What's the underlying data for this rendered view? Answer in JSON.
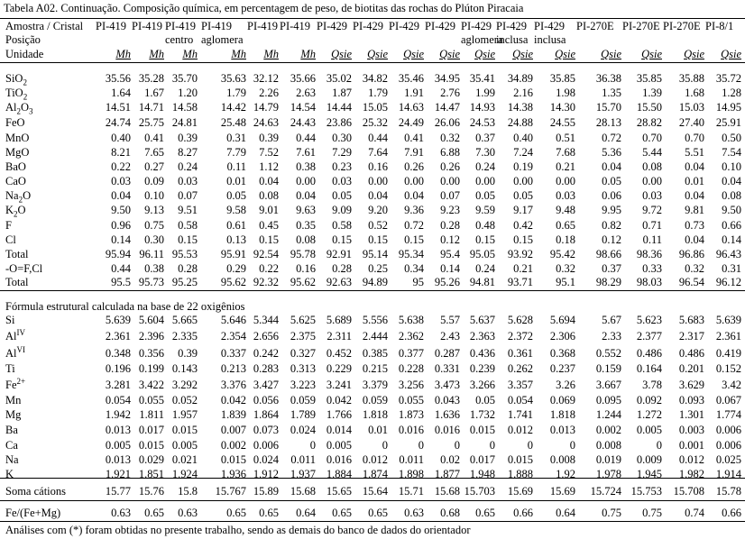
{
  "title": "Tabela A02. Continuação. Composição química, em percentagem de peso, de biotitas das rochas do Plúton Piracaia",
  "header": {
    "row_label_1": "Amostra / Cristal",
    "row_label_2": "Posição",
    "row_label_3": "Unidade",
    "samples": [
      "PI-419",
      "PI-419",
      "PI-419",
      "PI-419",
      "PI-419",
      "PI-419",
      "PI-429",
      "PI-429",
      "PI-429",
      "PI-429",
      "PI-429",
      "PI-429",
      "PI-429",
      "PI-270E",
      "PI-270E",
      "PI-270E",
      "PI-8/1"
    ],
    "positions": [
      "",
      "",
      "centro",
      "aglomera",
      "",
      "",
      "",
      "",
      "",
      "",
      "aglomera",
      "inclusa",
      "inclusa",
      "",
      "",
      "",
      ""
    ],
    "units": [
      "Mh",
      "Mh",
      "Mh",
      "Mh",
      "Mh",
      "Mh",
      "Qsie",
      "Qsie",
      "Qsie",
      "Qsie",
      "Qsie",
      "Qsie",
      "Qsie",
      "Qsie",
      "Qsie",
      "Qsie",
      "Qsie"
    ]
  },
  "oxides": [
    {
      "base": "SiO",
      "sub": "2",
      "sup": "",
      "values": [
        "35.56",
        "35.28",
        "35.70",
        "35.63",
        "32.12",
        "35.66",
        "35.02",
        "34.82",
        "35.46",
        "34.95",
        "35.41",
        "34.89",
        "35.85",
        "36.38",
        "35.85",
        "35.88",
        "35.72"
      ]
    },
    {
      "base": "TiO",
      "sub": "2",
      "sup": "",
      "values": [
        "1.64",
        "1.67",
        "1.20",
        "1.79",
        "2.26",
        "2.63",
        "1.87",
        "1.79",
        "1.91",
        "2.76",
        "1.99",
        "2.16",
        "1.98",
        "1.35",
        "1.39",
        "1.68",
        "1.28"
      ]
    },
    {
      "base": "Al",
      "sub": "2",
      "sup": "",
      "tail": "O",
      "tailsub": "3",
      "values": [
        "14.51",
        "14.71",
        "14.58",
        "14.42",
        "14.79",
        "14.54",
        "14.44",
        "15.05",
        "14.63",
        "14.47",
        "14.93",
        "14.38",
        "14.30",
        "15.70",
        "15.50",
        "15.03",
        "14.95"
      ]
    },
    {
      "base": "FeO",
      "sub": "",
      "sup": "",
      "values": [
        "24.74",
        "25.75",
        "24.81",
        "25.48",
        "24.63",
        "24.43",
        "23.86",
        "25.32",
        "24.49",
        "26.06",
        "24.53",
        "24.88",
        "24.55",
        "28.13",
        "28.82",
        "27.40",
        "25.91"
      ]
    },
    {
      "base": "MnO",
      "sub": "",
      "sup": "",
      "values": [
        "0.40",
        "0.41",
        "0.39",
        "0.31",
        "0.39",
        "0.44",
        "0.30",
        "0.44",
        "0.41",
        "0.32",
        "0.37",
        "0.40",
        "0.51",
        "0.72",
        "0.70",
        "0.70",
        "0.50"
      ]
    },
    {
      "base": "MgO",
      "sub": "",
      "sup": "",
      "values": [
        "8.21",
        "7.65",
        "8.27",
        "7.79",
        "7.52",
        "7.61",
        "7.29",
        "7.64",
        "7.91",
        "6.88",
        "7.30",
        "7.24",
        "7.68",
        "5.36",
        "5.44",
        "5.51",
        "7.54"
      ]
    },
    {
      "base": "BaO",
      "sub": "",
      "sup": "",
      "values": [
        "0.22",
        "0.27",
        "0.24",
        "0.11",
        "1.12",
        "0.38",
        "0.23",
        "0.16",
        "0.26",
        "0.26",
        "0.24",
        "0.19",
        "0.21",
        "0.04",
        "0.08",
        "0.04",
        "0.10"
      ]
    },
    {
      "base": "CaO",
      "sub": "",
      "sup": "",
      "values": [
        "0.03",
        "0.09",
        "0.03",
        "0.01",
        "0.04",
        "0.00",
        "0.03",
        "0.00",
        "0.00",
        "0.00",
        "0.00",
        "0.00",
        "0.00",
        "0.05",
        "0.00",
        "0.01",
        "0.04"
      ]
    },
    {
      "base": "Na",
      "sub": "2",
      "sup": "",
      "tail": "O",
      "tailsub": "",
      "values": [
        "0.04",
        "0.10",
        "0.07",
        "0.05",
        "0.08",
        "0.04",
        "0.05",
        "0.04",
        "0.04",
        "0.07",
        "0.05",
        "0.05",
        "0.03",
        "0.06",
        "0.03",
        "0.04",
        "0.08"
      ]
    },
    {
      "base": "K",
      "sub": "2",
      "sup": "",
      "tail": "O",
      "tailsub": "",
      "values": [
        "9.50",
        "9.13",
        "9.51",
        "9.58",
        "9.01",
        "9.63",
        "9.09",
        "9.20",
        "9.36",
        "9.23",
        "9.59",
        "9.17",
        "9.48",
        "9.95",
        "9.72",
        "9.81",
        "9.50"
      ]
    },
    {
      "base": "F",
      "sub": "",
      "sup": "",
      "values": [
        "0.96",
        "0.75",
        "0.58",
        "0.61",
        "0.45",
        "0.35",
        "0.58",
        "0.52",
        "0.72",
        "0.28",
        "0.48",
        "0.42",
        "0.65",
        "0.82",
        "0.71",
        "0.73",
        "0.66"
      ]
    },
    {
      "base": "Cl",
      "sub": "",
      "sup": "",
      "values": [
        "0.14",
        "0.30",
        "0.15",
        "0.13",
        "0.15",
        "0.08",
        "0.15",
        "0.15",
        "0.15",
        "0.12",
        "0.15",
        "0.15",
        "0.18",
        "0.12",
        "0.11",
        "0.04",
        "0.14"
      ]
    },
    {
      "base": "Total",
      "sub": "",
      "sup": "",
      "values": [
        "95.94",
        "96.11",
        "95.53",
        "95.91",
        "92.54",
        "95.78",
        "92.91",
        "95.14",
        "95.34",
        "95.4",
        "95.05",
        "93.92",
        "95.42",
        "98.66",
        "98.36",
        "96.86",
        "96.43"
      ]
    },
    {
      "base": "-O=F,Cl",
      "sub": "",
      "sup": "",
      "values": [
        "0.44",
        "0.38",
        "0.28",
        "0.29",
        "0.22",
        "0.16",
        "0.28",
        "0.25",
        "0.34",
        "0.14",
        "0.24",
        "0.21",
        "0.32",
        "0.37",
        "0.33",
        "0.32",
        "0.31"
      ]
    },
    {
      "base": "Total",
      "sub": "",
      "sup": "",
      "values": [
        "95.5",
        "95.73",
        "95.25",
        "95.62",
        "92.32",
        "95.62",
        "92.63",
        "94.89",
        "95",
        "95.26",
        "94.81",
        "93.71",
        "95.1",
        "98.29",
        "98.03",
        "96.54",
        "96.12"
      ]
    }
  ],
  "formula_title": "Fórmula estrutural calculada na base de 22 oxigênios",
  "formula": [
    {
      "base": "Si",
      "sup": "",
      "values": [
        "5.639",
        "5.604",
        "5.665",
        "5.646",
        "5.344",
        "5.625",
        "5.689",
        "5.556",
        "5.638",
        "5.57",
        "5.637",
        "5.628",
        "5.694",
        "5.67",
        "5.623",
        "5.683",
        "5.639"
      ]
    },
    {
      "base": "Al",
      "sup": "IV",
      "values": [
        "2.361",
        "2.396",
        "2.335",
        "2.354",
        "2.656",
        "2.375",
        "2.311",
        "2.444",
        "2.362",
        "2.43",
        "2.363",
        "2.372",
        "2.306",
        "2.33",
        "2.377",
        "2.317",
        "2.361"
      ]
    },
    {
      "base": "Al",
      "sup": "VI",
      "values": [
        "0.348",
        "0.356",
        "0.39",
        "0.337",
        "0.242",
        "0.327",
        "0.452",
        "0.385",
        "0.377",
        "0.287",
        "0.436",
        "0.361",
        "0.368",
        "0.552",
        "0.486",
        "0.486",
        "0.419"
      ]
    },
    {
      "base": "Ti",
      "sup": "",
      "values": [
        "0.196",
        "0.199",
        "0.143",
        "0.213",
        "0.283",
        "0.313",
        "0.229",
        "0.215",
        "0.228",
        "0.331",
        "0.239",
        "0.262",
        "0.237",
        "0.159",
        "0.164",
        "0.201",
        "0.152"
      ]
    },
    {
      "base": "Fe",
      "sup": "2+",
      "values": [
        "3.281",
        "3.422",
        "3.292",
        "3.376",
        "3.427",
        "3.223",
        "3.241",
        "3.379",
        "3.256",
        "3.473",
        "3.266",
        "3.357",
        "3.26",
        "3.667",
        "3.78",
        "3.629",
        "3.42"
      ]
    },
    {
      "base": "Mn",
      "sup": "",
      "values": [
        "0.054",
        "0.055",
        "0.052",
        "0.042",
        "0.056",
        "0.059",
        "0.042",
        "0.059",
        "0.055",
        "0.043",
        "0.05",
        "0.054",
        "0.069",
        "0.095",
        "0.092",
        "0.093",
        "0.067"
      ]
    },
    {
      "base": "Mg",
      "sup": "",
      "values": [
        "1.942",
        "1.811",
        "1.957",
        "1.839",
        "1.864",
        "1.789",
        "1.766",
        "1.818",
        "1.873",
        "1.636",
        "1.732",
        "1.741",
        "1.818",
        "1.244",
        "1.272",
        "1.301",
        "1.774"
      ]
    },
    {
      "base": "Ba",
      "sup": "",
      "values": [
        "0.013",
        "0.017",
        "0.015",
        "0.007",
        "0.073",
        "0.024",
        "0.014",
        "0.01",
        "0.016",
        "0.016",
        "0.015",
        "0.012",
        "0.013",
        "0.002",
        "0.005",
        "0.003",
        "0.006"
      ]
    },
    {
      "base": "Ca",
      "sup": "",
      "values": [
        "0.005",
        "0.015",
        "0.005",
        "0.002",
        "0.006",
        "0",
        "0.005",
        "0",
        "0",
        "0",
        "0",
        "0",
        "0",
        "0.008",
        "0",
        "0.001",
        "0.006"
      ]
    },
    {
      "base": "Na",
      "sup": "",
      "values": [
        "0.013",
        "0.029",
        "0.021",
        "0.015",
        "0.024",
        "0.011",
        "0.016",
        "0.012",
        "0.011",
        "0.02",
        "0.017",
        "0.015",
        "0.008",
        "0.019",
        "0.009",
        "0.012",
        "0.025"
      ]
    },
    {
      "base": "K",
      "sup": "",
      "values": [
        "1.921",
        "1.851",
        "1.924",
        "1.936",
        "1.912",
        "1.937",
        "1.884",
        "1.874",
        "1.898",
        "1.877",
        "1.948",
        "1.888",
        "1.92",
        "1.978",
        "1.945",
        "1.982",
        "1.914"
      ]
    }
  ],
  "soma": {
    "label": "Soma cátions",
    "values": [
      "15.77",
      "15.76",
      "15.8",
      "15.767",
      "15.89",
      "15.68",
      "15.65",
      "15.64",
      "15.71",
      "15.68",
      "15.703",
      "15.69",
      "15.69",
      "15.724",
      "15.753",
      "15.708",
      "15.78"
    ]
  },
  "fefemg": {
    "label": "Fe/(Fe+Mg)",
    "values": [
      "0.63",
      "0.65",
      "0.63",
      "0.65",
      "0.65",
      "0.64",
      "0.65",
      "0.65",
      "0.63",
      "0.68",
      "0.65",
      "0.66",
      "0.64",
      "0.75",
      "0.75",
      "0.74",
      "0.66"
    ]
  },
  "footnote": "Análises com (*) foram obtidas no presente trabalho, sendo as demais do banco de dados do orientador"
}
